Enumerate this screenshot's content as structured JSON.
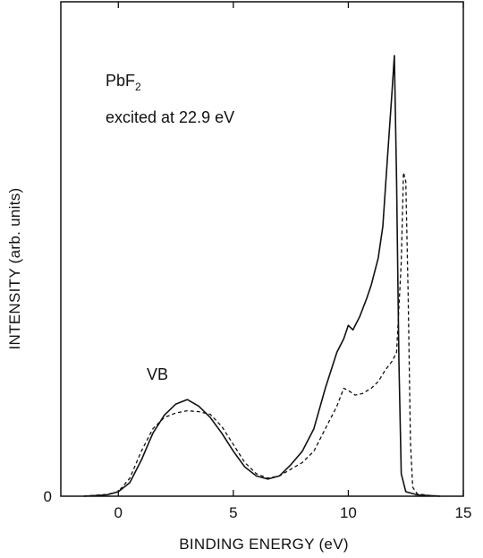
{
  "chart_data": {
    "type": "line",
    "title": "",
    "xlabel": "BINDING  ENERGY (eV)",
    "ylabel": "INTENSITY (arb. units)",
    "xlim": [
      -2.5,
      15
    ],
    "ylim": [
      0,
      1.0
    ],
    "x_ticks": [
      0,
      5,
      10,
      15
    ],
    "y_ticks": [
      0
    ],
    "grid": false,
    "legend": "none",
    "annotations": {
      "compound": "PbF",
      "compound_subscript": "2",
      "excitation": "excited at 22.9 eV",
      "vb_label": "VB"
    },
    "series": [
      {
        "style": "solid",
        "x": [
          -1.5,
          -0.5,
          0.0,
          0.5,
          1.0,
          1.5,
          2.0,
          2.5,
          3.0,
          3.5,
          4.0,
          4.5,
          5.0,
          5.5,
          6.0,
          6.5,
          7.0,
          7.5,
          8.0,
          8.5,
          9.0,
          9.5,
          9.8,
          10.0,
          10.2,
          10.5,
          10.8,
          11.0,
          11.3,
          11.5,
          11.7,
          11.9,
          12.0,
          12.1,
          12.2,
          12.3,
          12.5,
          13.0,
          14.0
        ],
        "y": [
          0.0,
          0.003,
          0.01,
          0.03,
          0.08,
          0.14,
          0.18,
          0.205,
          0.215,
          0.2,
          0.175,
          0.14,
          0.1,
          0.065,
          0.045,
          0.038,
          0.045,
          0.07,
          0.1,
          0.15,
          0.24,
          0.32,
          0.35,
          0.38,
          0.37,
          0.4,
          0.44,
          0.47,
          0.53,
          0.6,
          0.75,
          0.9,
          0.98,
          0.7,
          0.3,
          0.05,
          0.01,
          0.003,
          0.0
        ]
      },
      {
        "style": "dashed",
        "x": [
          -1.5,
          -0.5,
          0.0,
          0.5,
          1.0,
          1.5,
          2.0,
          2.5,
          3.0,
          3.5,
          4.0,
          4.5,
          5.0,
          5.5,
          6.0,
          6.5,
          7.0,
          7.5,
          8.0,
          8.5,
          9.0,
          9.5,
          9.8,
          10.0,
          10.3,
          10.6,
          11.0,
          11.3,
          11.6,
          11.9,
          12.1,
          12.3,
          12.4,
          12.5,
          12.6,
          12.7,
          12.8,
          13.0,
          13.5,
          14.0
        ],
        "y": [
          0.0,
          0.004,
          0.01,
          0.04,
          0.1,
          0.15,
          0.175,
          0.185,
          0.19,
          0.188,
          0.182,
          0.155,
          0.115,
          0.075,
          0.05,
          0.04,
          0.045,
          0.06,
          0.075,
          0.1,
          0.15,
          0.2,
          0.24,
          0.235,
          0.225,
          0.228,
          0.24,
          0.255,
          0.28,
          0.3,
          0.32,
          0.52,
          0.72,
          0.7,
          0.45,
          0.12,
          0.02,
          0.005,
          0.002,
          0.0
        ]
      }
    ]
  }
}
